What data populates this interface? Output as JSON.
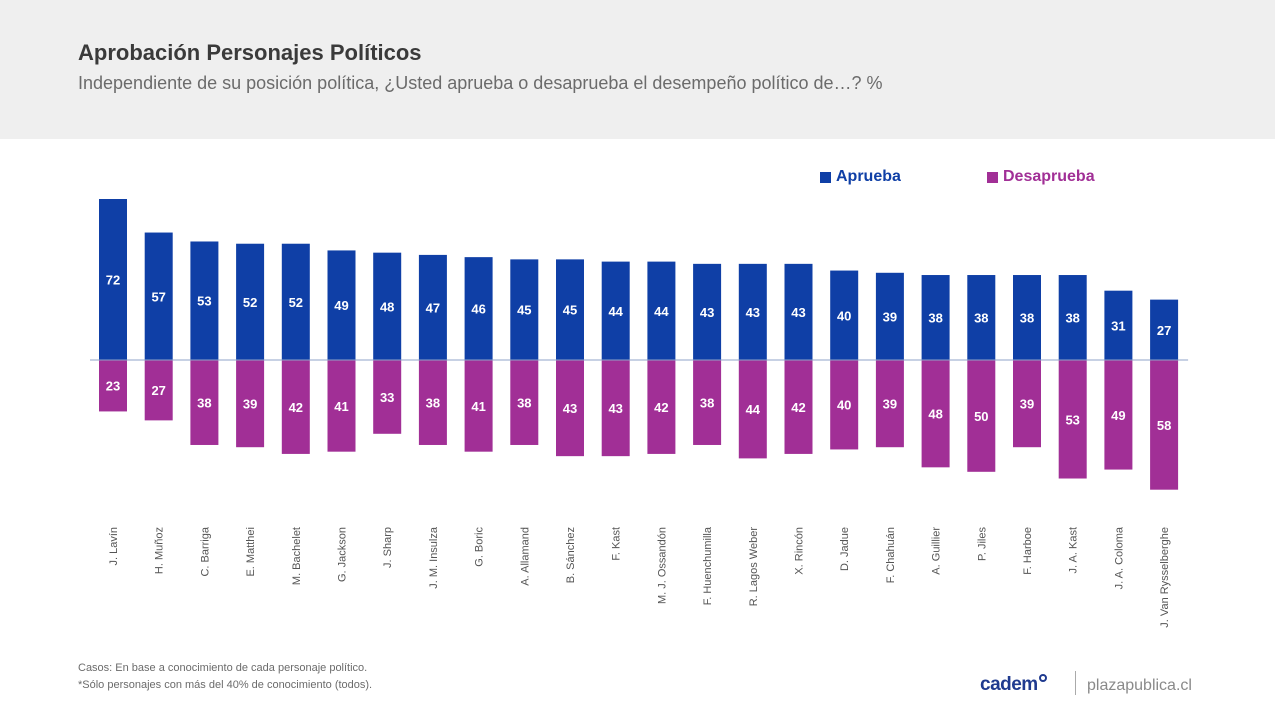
{
  "header": {
    "title": "Aprobación Personajes Políticos",
    "subtitle": "Independiente de su posición política, ¿Usted aprueba o desaprueba el desempeño político de…? %"
  },
  "colors": {
    "aprueba": "#0f3fa6",
    "desaprueba": "#a12f96",
    "axis": "#8fa3c8",
    "header_bg": "#efefef"
  },
  "chart_data": {
    "type": "bar",
    "title": "Aprobación Personajes Políticos",
    "categories": [
      "J. Lavín",
      "H. Muñoz",
      "C. Barriga",
      "E. Matthei",
      "M. Bachelet",
      "G. Jackson",
      "J. Sharp",
      "J. M. Insulza",
      "G. Boric",
      "A. Allamand",
      "B. Sánchez",
      "F. Kast",
      "M. J. Ossandón",
      "F. Huenchumilla",
      "R. Lagos Weber",
      "X. Rincón",
      "D. Jadue",
      "F. Chahuán",
      "A. Guillier",
      "P. Jiles",
      "F. Harboe",
      "J. A. Kast",
      "J. A. Coloma",
      "J. Van Rysselberghe"
    ],
    "series": [
      {
        "name": "Aprueba",
        "values": [
          72,
          57,
          53,
          52,
          52,
          49,
          48,
          47,
          46,
          45,
          45,
          44,
          44,
          43,
          43,
          43,
          40,
          39,
          38,
          38,
          38,
          38,
          31,
          27
        ]
      },
      {
        "name": "Desaprueba",
        "values": [
          23,
          27,
          38,
          39,
          42,
          41,
          33,
          38,
          41,
          38,
          43,
          43,
          42,
          38,
          44,
          42,
          40,
          39,
          48,
          50,
          39,
          53,
          49,
          58
        ]
      }
    ],
    "legend_position": "top-right",
    "grid": false
  },
  "footnotes": [
    "Casos: En base a conocimiento de cada personaje político.",
    "*Sólo personajes con más del 40% de conocimiento (todos)."
  ],
  "branding": {
    "logo_text": "cadem",
    "site": "plazapublica.cl"
  }
}
